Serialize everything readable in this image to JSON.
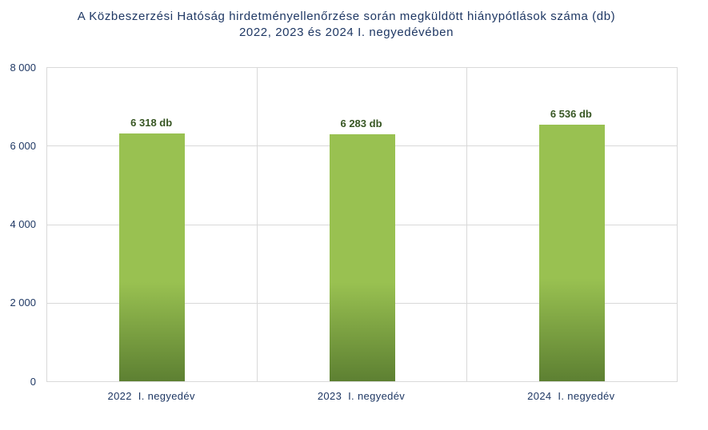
{
  "chart_data": {
    "type": "bar",
    "title_lines": [
      "A Közbeszerzési Hatóság hirdetményellenőrzése során megküldött hiánypótlások száma (db)",
      "2022, 2023 és 2024 I. negyedévében"
    ],
    "categories": [
      "2022  I. negyedév",
      "2023  I. negyedév",
      "2024  I. negyedév"
    ],
    "values": [
      6318,
      6283,
      6536
    ],
    "value_labels": [
      "6 318 db",
      "6 283 db",
      "6 536 db"
    ],
    "ylim": [
      0,
      8000
    ],
    "y_ticks": [
      0,
      2000,
      4000,
      6000,
      8000
    ],
    "y_tick_labels": [
      "0",
      "2 000",
      "4 000",
      "6 000",
      "8 000"
    ],
    "xlabel": "",
    "ylabel": "",
    "grid": true,
    "legend": false,
    "colors": {
      "title": "#1F3864",
      "axis_labels": "#1F3864",
      "data_labels": "#375623",
      "bar_light": "#99C151",
      "bar_dark": "#5D8032",
      "gridline": "#D9D9D9",
      "background": "#FFFFFF"
    }
  }
}
